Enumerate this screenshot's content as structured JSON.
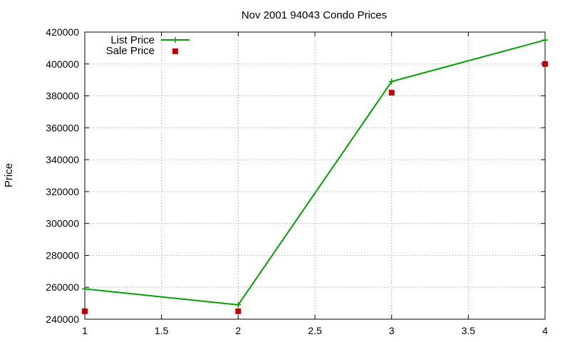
{
  "chart_data": {
    "type": "line",
    "title": "Nov 2001 94043 Condo Prices",
    "xlabel": "",
    "ylabel": "Price",
    "xlim": [
      1,
      4
    ],
    "ylim": [
      240000,
      420000
    ],
    "x_ticks": [
      1,
      1.5,
      2,
      2.5,
      3,
      3.5,
      4
    ],
    "x_tick_labels": [
      "1",
      "1.5",
      "2",
      "2.5",
      "3",
      "3.5",
      "4"
    ],
    "y_ticks": [
      240000,
      260000,
      280000,
      300000,
      320000,
      340000,
      360000,
      380000,
      400000,
      420000
    ],
    "y_tick_labels": [
      "240000",
      "260000",
      "280000",
      "300000",
      "320000",
      "340000",
      "360000",
      "380000",
      "400000",
      "420000"
    ],
    "grid": true,
    "legend_position": "top-left",
    "series": [
      {
        "name": "List Price",
        "style": "line-with-plus-markers",
        "color": "#00a000",
        "x": [
          1,
          2,
          3,
          4
        ],
        "y": [
          259000,
          249000,
          389000,
          415000
        ]
      },
      {
        "name": "Sale Price",
        "style": "square-points",
        "color": "#c00000",
        "x": [
          1,
          2,
          3,
          4
        ],
        "y": [
          245000,
          245000,
          382000,
          400000
        ]
      }
    ]
  }
}
